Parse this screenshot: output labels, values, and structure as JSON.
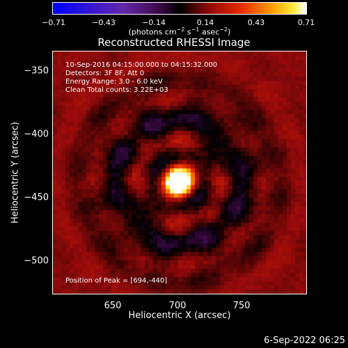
{
  "colorbar": {
    "ticks": [
      "−0.71",
      "−0.43",
      "−0.14",
      "0.14",
      "0.43",
      "0.71"
    ],
    "units_prefix": "(photons cm",
    "units_sup1": "−2",
    "units_mid1": " s",
    "units_sup2": "−1",
    "units_mid2": " asec",
    "units_sup3": "−2",
    "units_suffix": ")"
  },
  "title": "Reconstructed RHESSI Image",
  "annotations": {
    "time_range": "10-Sep-2016 04:15:00.000 to 04:15:32.000",
    "detectors": "Detectors: 3F 8F, Att 0",
    "energy_range": "Energy Range: 3.0 - 6.0 keV",
    "algorithm": "Clean     Total counts: 3.22E+03",
    "peak": "Position of Peak = [694,-440]"
  },
  "axes": {
    "xlabel": "Heliocentric X (arcsec)",
    "ylabel": "Heliocentric Y (arcsec)",
    "xticks": [
      "650",
      "700",
      "750"
    ],
    "yticks": [
      "−350",
      "−400",
      "−450",
      "−500"
    ]
  },
  "footer": "6-Sep-2022 06:25",
  "colors": {
    "background": "#000000",
    "foreground": "#ffffff"
  }
}
